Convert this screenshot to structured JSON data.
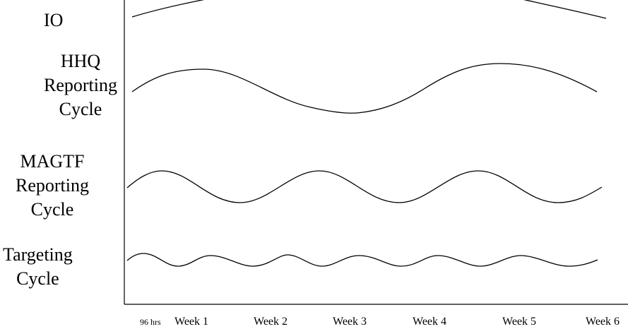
{
  "rows": [
    {
      "id": "io",
      "lines": [
        "IO"
      ]
    },
    {
      "id": "hhq",
      "lines": [
        "HHQ",
        "Reporting",
        "Cycle"
      ]
    },
    {
      "id": "magtf",
      "lines": [
        "MAGTF",
        "Reporting",
        "Cycle"
      ]
    },
    {
      "id": "targeting",
      "lines": [
        "Targeting",
        "Cycle"
      ]
    }
  ],
  "x_axis": {
    "labels": [
      "96 hrs",
      "Week 1",
      "Week 2",
      "Week 3",
      "Week 4",
      "Week 5",
      "Week 6"
    ]
  },
  "colors": {
    "line": "#000000",
    "background": "#ffffff"
  }
}
